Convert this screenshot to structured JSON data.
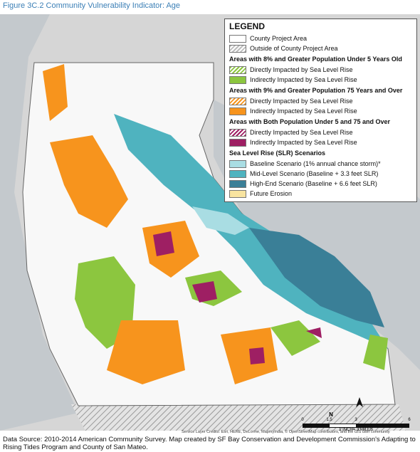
{
  "header": {
    "title": "Figure 3C.2 Community Vulnerability Indicator: Age"
  },
  "legend": {
    "title": "LEGEND",
    "base": [
      {
        "label": "County Project Area",
        "color": "#ffffff",
        "hatched": false
      },
      {
        "label": "Outside of County Project Area",
        "color": "#bdbdbd",
        "hatched": true
      }
    ],
    "sections": [
      {
        "heading": "Areas with 8% and Greater Population Under 5 Years Old",
        "entries": [
          {
            "label": "Directly Impacted by Sea Level Rise",
            "color": "#8cc63f",
            "hatched": true
          },
          {
            "label": "Indirectly Impacted by Sea Level Rise",
            "color": "#8cc63f",
            "hatched": false
          }
        ]
      },
      {
        "heading": "Areas with 9% and Greater Population 75 Years and Over",
        "entries": [
          {
            "label": "Directly Impacted by Sea Level Rise",
            "color": "#f7941d",
            "hatched": true
          },
          {
            "label": "Indirectly Impacted by Sea Level Rise",
            "color": "#f7941d",
            "hatched": false
          }
        ]
      },
      {
        "heading": "Areas with Both Population Under 5 and 75 and Over",
        "entries": [
          {
            "label": "Directly Impacted by Sea Level Rise",
            "color": "#9e1f63",
            "hatched": true
          },
          {
            "label": "Indirectly Impacted by Sea Level Rise",
            "color": "#9e1f63",
            "hatched": false
          }
        ]
      },
      {
        "heading": "Sea Level Rise (SLR) Scenarios",
        "entries": [
          {
            "label": "Baseline Scenario (1% annual chance storm)*",
            "color": "#a9dde3",
            "hatched": false
          },
          {
            "label": "Mid-Level Scenario (Baseline + 3.3 feet SLR)",
            "color": "#4fb3bf",
            "hatched": false
          },
          {
            "label": "High-End Scenario (Baseline + 6.6 feet SLR)",
            "color": "#3a7f97",
            "hatched": false
          },
          {
            "label": "Future Erosion",
            "color": "#f8e4a0",
            "hatched": false
          }
        ]
      }
    ]
  },
  "scale": {
    "ticks": [
      "0",
      "1.5",
      "3",
      "6"
    ],
    "caption": "1 INCH= 3 MILES",
    "north": "N"
  },
  "credits": "Service Layer Credits: Esri, HERE, DeLorme, MapmyIndia, © OpenStreetMap contributors, and the GIS user community",
  "source": "Data Source: 2010-2014 American Community Survey. Map created by SF Bay Conservation and Development Commission's Adapting to Rising Tides Program and County of San Mateo."
}
